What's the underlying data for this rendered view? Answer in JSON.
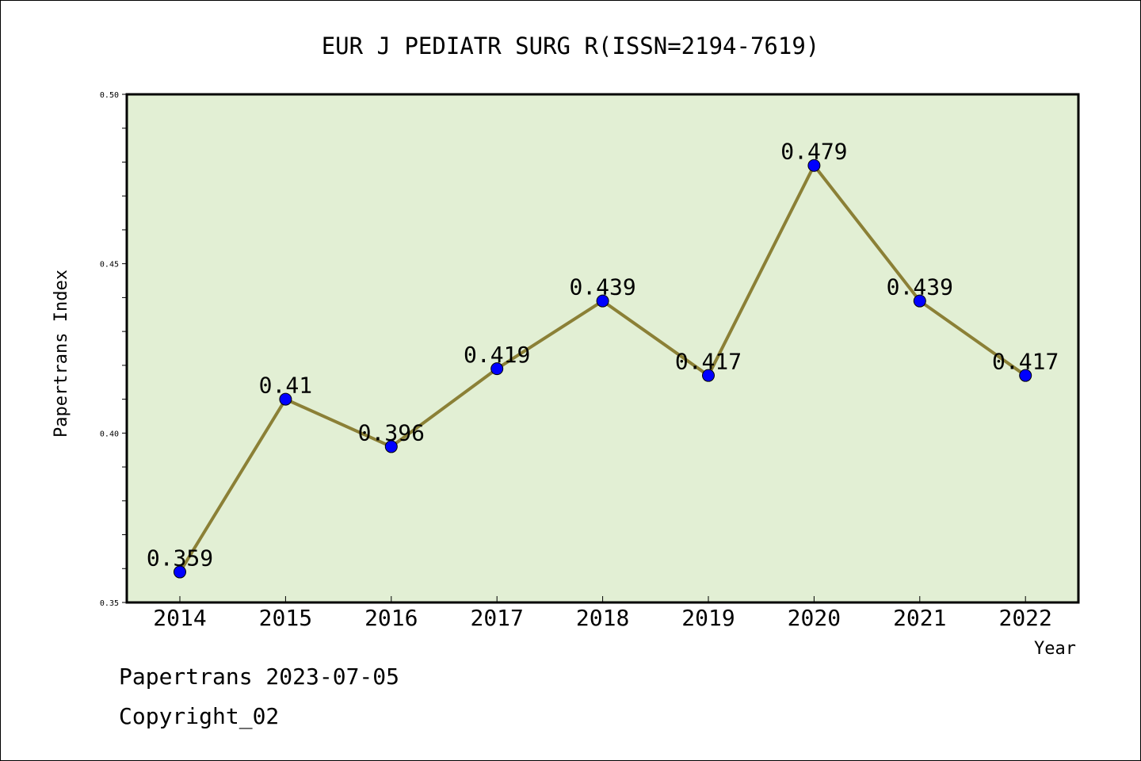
{
  "chart_data": {
    "type": "line",
    "title": "EUR J PEDIATR SURG R(ISSN=2194-7619)",
    "xlabel": "Year",
    "ylabel": "Papertrans Index",
    "categories": [
      "2014",
      "2015",
      "2016",
      "2017",
      "2018",
      "2019",
      "2020",
      "2021",
      "2022"
    ],
    "series": [
      {
        "values": [
          0.359,
          0.41,
          0.396,
          0.419,
          0.439,
          0.417,
          0.479,
          0.439,
          0.417
        ],
        "labels": [
          "0.359",
          "0.41",
          "0.396",
          "0.419",
          "0.439",
          "0.417",
          "0.479",
          "0.439",
          "0.417"
        ]
      }
    ],
    "ylim": [
      0.35,
      0.5
    ],
    "yticks": [
      0.35,
      0.4,
      0.45,
      0.5
    ],
    "ytick_labels": [
      "0.35",
      "0.40",
      "0.45",
      "0.50"
    ],
    "grid": false,
    "colors": {
      "plot_background": "#e2efd4",
      "line": "#8b8036",
      "marker": "#0000ff"
    }
  },
  "footer": {
    "line1": "Papertrans 2023-07-05",
    "line2": "Copyright_02"
  }
}
